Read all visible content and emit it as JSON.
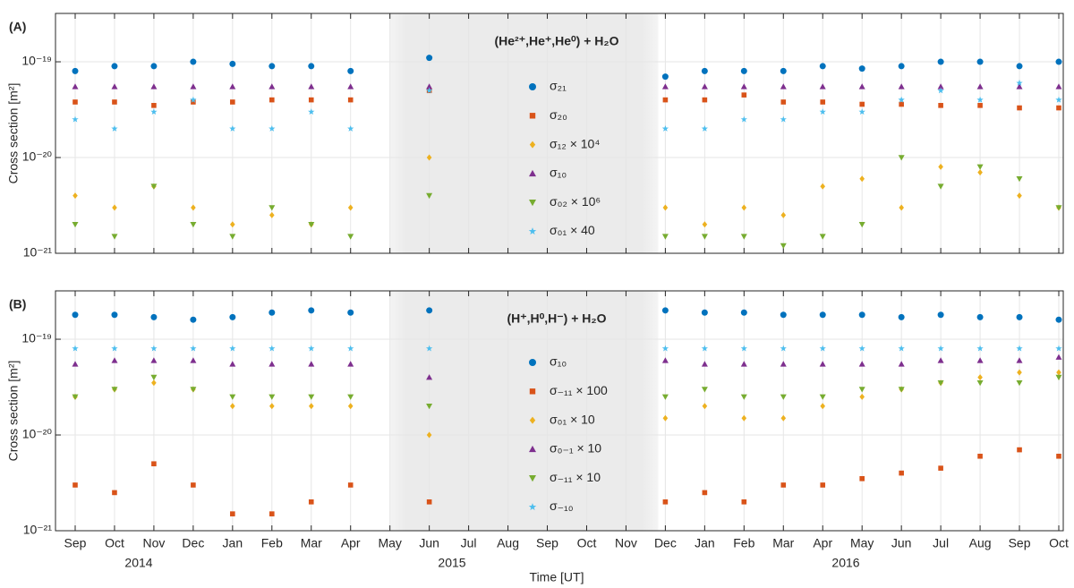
{
  "chart_data": [
    {
      "type": "scatter",
      "panel": "(A)",
      "title": "(He²⁺,He⁺,He⁰) + H₂O",
      "ylabel": "Cross section [m²]",
      "log": true,
      "grid": true,
      "ylim": [
        1e-21,
        3.2e-19
      ],
      "yticks": [
        {
          "value": 1e-21,
          "label": "10⁻²¹"
        },
        {
          "value": 1e-20,
          "label": "10⁻²⁰"
        },
        {
          "value": 1e-19,
          "label": "10⁻¹⁹"
        }
      ],
      "series": [
        {
          "name": "σ₂₁",
          "color": "#0072bd",
          "marker": "circle",
          "values": [
            8e-20,
            9e-20,
            9e-20,
            1e-19,
            9.5e-20,
            9e-20,
            9e-20,
            8e-20,
            null,
            1.1e-19,
            null,
            null,
            null,
            null,
            null,
            7e-20,
            8e-20,
            8e-20,
            8e-20,
            9e-20,
            8.5e-20,
            9e-20,
            1e-19,
            1e-19,
            9e-20,
            1e-19
          ]
        },
        {
          "name": "σ₂₀",
          "color": "#d95319",
          "marker": "square",
          "values": [
            3.8e-20,
            3.8e-20,
            3.5e-20,
            3.8e-20,
            3.8e-20,
            4e-20,
            4e-20,
            4e-20,
            null,
            5e-20,
            null,
            null,
            null,
            null,
            null,
            4e-20,
            4e-20,
            4.5e-20,
            3.8e-20,
            3.8e-20,
            3.6e-20,
            3.6e-20,
            3.5e-20,
            3.5e-20,
            3.3e-20,
            3.3e-20
          ]
        },
        {
          "name": "σ₁₂ × 10⁴",
          "color": "#edb120",
          "marker": "diamond",
          "values": [
            4e-21,
            3e-21,
            5e-21,
            3e-21,
            2e-21,
            2.5e-21,
            2e-21,
            3e-21,
            null,
            1e-20,
            null,
            null,
            null,
            null,
            null,
            3e-21,
            2e-21,
            3e-21,
            2.5e-21,
            5e-21,
            6e-21,
            3e-21,
            8e-21,
            7e-21,
            4e-21,
            3e-21
          ]
        },
        {
          "name": "σ₁₀",
          "color": "#7e2f8e",
          "marker": "triangle",
          "values": [
            5.5e-20,
            5.5e-20,
            5.5e-20,
            5.5e-20,
            5.5e-20,
            5.5e-20,
            5.5e-20,
            5.5e-20,
            null,
            5.5e-20,
            null,
            null,
            null,
            null,
            null,
            5.5e-20,
            5.5e-20,
            5.5e-20,
            5.5e-20,
            5.5e-20,
            5.5e-20,
            5.5e-20,
            5.5e-20,
            5.5e-20,
            5.5e-20,
            5.5e-20
          ]
        },
        {
          "name": "σ₀₂ × 10⁶",
          "color": "#77ac30",
          "marker": "triangle-down",
          "values": [
            2e-21,
            1.5e-21,
            5e-21,
            2e-21,
            1.5e-21,
            3e-21,
            2e-21,
            1.5e-21,
            null,
            4e-21,
            null,
            null,
            null,
            null,
            null,
            1.5e-21,
            1.5e-21,
            1.5e-21,
            1.2e-21,
            1.5e-21,
            2e-21,
            1e-20,
            5e-21,
            8e-21,
            6e-21,
            3e-21
          ]
        },
        {
          "name": "σ₀₁ × 40",
          "color": "#4dbeee",
          "marker": "star",
          "values": [
            2.5e-20,
            2e-20,
            3e-20,
            4e-20,
            2e-20,
            2e-20,
            3e-20,
            2e-20,
            null,
            5e-20,
            null,
            null,
            null,
            null,
            null,
            2e-20,
            2e-20,
            2.5e-20,
            2.5e-20,
            3e-20,
            3e-20,
            4e-20,
            5e-20,
            4e-20,
            6e-20,
            4e-20
          ]
        }
      ]
    },
    {
      "type": "scatter",
      "panel": "(B)",
      "title": "(H⁺,H⁰,H⁻) + H₂O",
      "ylabel": "Cross section [m²]",
      "xlabel": "Time [UT]",
      "log": true,
      "grid": true,
      "ylim": [
        1e-21,
        3.2e-19
      ],
      "yticks": [
        {
          "value": 1e-21,
          "label": "10⁻²¹"
        },
        {
          "value": 1e-20,
          "label": "10⁻²⁰"
        },
        {
          "value": 1e-19,
          "label": "10⁻¹⁹"
        }
      ],
      "categories": [
        "Sep",
        "Oct",
        "Nov",
        "Dec",
        "Jan",
        "Feb",
        "Mar",
        "Apr",
        "May",
        "Jun",
        "Jul",
        "Aug",
        "Sep",
        "Oct",
        "Nov",
        "Dec",
        "Jan",
        "Feb",
        "Mar",
        "Apr",
        "May",
        "Jun",
        "Jul",
        "Aug",
        "Sep",
        "Oct"
      ],
      "years": [
        "2014",
        "2015",
        "2016"
      ],
      "series": [
        {
          "name": "σ₁₀",
          "color": "#0072bd",
          "marker": "circle",
          "values": [
            1.8e-19,
            1.8e-19,
            1.7e-19,
            1.6e-19,
            1.7e-19,
            1.9e-19,
            2e-19,
            1.9e-19,
            null,
            2e-19,
            null,
            null,
            null,
            null,
            null,
            2e-19,
            1.9e-19,
            1.9e-19,
            1.8e-19,
            1.8e-19,
            1.8e-19,
            1.7e-19,
            1.8e-19,
            1.7e-19,
            1.7e-19,
            1.6e-19
          ]
        },
        {
          "name": "σ₋₁₁ × 100",
          "color": "#d95319",
          "marker": "square",
          "values": [
            3e-21,
            2.5e-21,
            5e-21,
            3e-21,
            1.5e-21,
            1.5e-21,
            2e-21,
            3e-21,
            null,
            2e-21,
            null,
            null,
            null,
            null,
            null,
            2e-21,
            2.5e-21,
            2e-21,
            3e-21,
            3e-21,
            3.5e-21,
            4e-21,
            4.5e-21,
            6e-21,
            7e-21,
            6e-21
          ]
        },
        {
          "name": "σ₀₁ × 10",
          "color": "#edb120",
          "marker": "diamond",
          "values": [
            2.5e-20,
            3e-20,
            3.5e-20,
            3e-20,
            2e-20,
            2e-20,
            2e-20,
            2e-20,
            null,
            1e-20,
            null,
            null,
            null,
            null,
            null,
            1.5e-20,
            2e-20,
            1.5e-20,
            1.5e-20,
            2e-20,
            2.5e-20,
            3e-20,
            3.5e-20,
            4e-20,
            4.5e-20,
            4.5e-20
          ]
        },
        {
          "name": "σ₀₋₁ × 10",
          "color": "#7e2f8e",
          "marker": "triangle",
          "values": [
            5.5e-20,
            6e-20,
            6e-20,
            6e-20,
            5.5e-20,
            5.5e-20,
            5.5e-20,
            5.5e-20,
            null,
            4e-20,
            null,
            null,
            null,
            null,
            null,
            6e-20,
            5.5e-20,
            5.5e-20,
            5.5e-20,
            5.5e-20,
            5.5e-20,
            5.5e-20,
            6e-20,
            6e-20,
            6e-20,
            6.5e-20
          ]
        },
        {
          "name": "σ₋₁₁ × 10",
          "color": "#77ac30",
          "marker": "triangle-down",
          "values": [
            2.5e-20,
            3e-20,
            4e-20,
            3e-20,
            2.5e-20,
            2.5e-20,
            2.5e-20,
            2.5e-20,
            null,
            2e-20,
            null,
            null,
            null,
            null,
            null,
            2.5e-20,
            3e-20,
            2.5e-20,
            2.5e-20,
            2.5e-20,
            3e-20,
            3e-20,
            3.5e-20,
            3.5e-20,
            3.5e-20,
            4e-20
          ]
        },
        {
          "name": "σ₋₁₀",
          "color": "#4dbeee",
          "marker": "star",
          "values": [
            8e-20,
            8e-20,
            8e-20,
            8e-20,
            8e-20,
            8e-20,
            8e-20,
            8e-20,
            null,
            8e-20,
            null,
            null,
            null,
            null,
            null,
            8e-20,
            8e-20,
            8e-20,
            8e-20,
            8e-20,
            8e-20,
            8e-20,
            8e-20,
            8e-20,
            8e-20,
            8e-20
          ]
        }
      ]
    }
  ]
}
